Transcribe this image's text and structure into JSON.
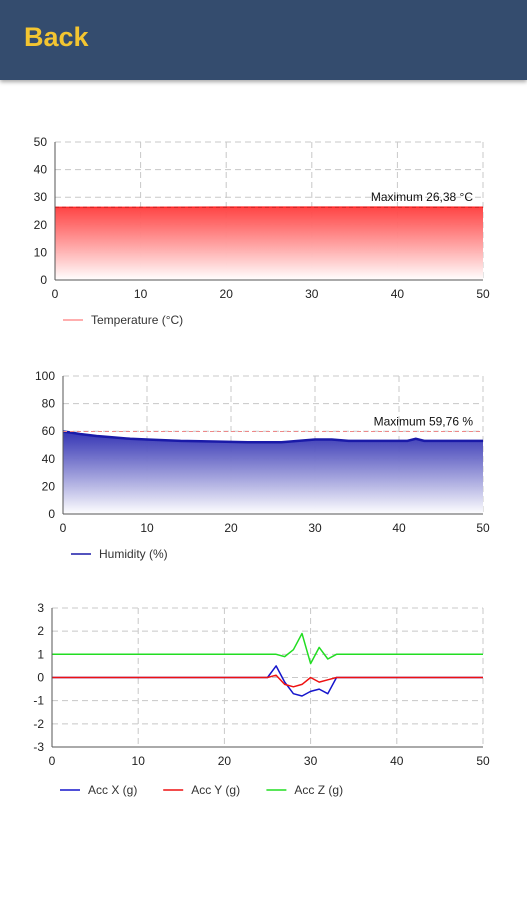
{
  "header": {
    "back_label": "Back"
  },
  "chart_data": [
    {
      "type": "area",
      "x": [
        0,
        10,
        20,
        30,
        40,
        50
      ],
      "xlim": [
        0,
        50
      ],
      "ylim": [
        0,
        50
      ],
      "xticks": [
        0,
        10,
        20,
        30,
        40,
        50
      ],
      "yticks": [
        0,
        10,
        20,
        30,
        40,
        50
      ],
      "series": [
        {
          "name": "Temperature (°C)",
          "values": [
            26.3,
            26.3,
            26.4,
            26.4,
            26.4,
            26.38
          ],
          "color": "#ff2a2a"
        }
      ],
      "max_label": "Maximum 26,38 °C",
      "max_value": 26.38,
      "grid": true,
      "legend_placement": "bottom-left"
    },
    {
      "type": "area",
      "x": [
        0,
        1,
        2,
        4,
        6,
        8,
        10,
        14,
        18,
        22,
        26,
        28,
        30,
        32,
        34,
        38,
        41,
        42,
        43,
        46,
        50
      ],
      "xlim": [
        0,
        50
      ],
      "ylim": [
        0,
        100
      ],
      "xticks": [
        0,
        10,
        20,
        30,
        40,
        50
      ],
      "yticks": [
        0,
        20,
        40,
        60,
        80,
        100
      ],
      "series": [
        {
          "name": "Humidity (%)",
          "values": [
            59.8,
            59,
            58,
            56.5,
            55.5,
            54.5,
            54,
            53,
            52.5,
            52,
            52,
            53,
            54,
            54,
            53,
            53,
            53,
            54.5,
            53,
            53,
            53
          ],
          "color": "#1a1aa8"
        }
      ],
      "max_label": "Maximum 59,76 %",
      "max_value": 59.76,
      "grid": true,
      "legend_placement": "bottom-left"
    },
    {
      "type": "line",
      "x": [
        0,
        10,
        20,
        25,
        26,
        27,
        28,
        29,
        30,
        31,
        32,
        33,
        34,
        40,
        50
      ],
      "xlim": [
        0,
        50
      ],
      "ylim": [
        -3,
        3
      ],
      "xticks": [
        0,
        10,
        20,
        30,
        40,
        50
      ],
      "yticks": [
        -3,
        -2,
        -1,
        0,
        1,
        2,
        3
      ],
      "series": [
        {
          "name": "Acc X (g)",
          "values": [
            0,
            0,
            0,
            0,
            0.5,
            -0.2,
            -0.7,
            -0.8,
            -0.6,
            -0.5,
            -0.7,
            0,
            0,
            0,
            0
          ],
          "color": "#1515cc"
        },
        {
          "name": "Acc Y (g)",
          "values": [
            0,
            0,
            0,
            0,
            0.1,
            -0.3,
            -0.4,
            -0.3,
            0,
            -0.2,
            -0.1,
            0,
            0,
            0,
            0
          ],
          "color": "#ee1111"
        },
        {
          "name": "Acc Z (g)",
          "values": [
            1,
            1,
            1,
            1,
            1,
            0.9,
            1.2,
            1.9,
            0.6,
            1.3,
            0.8,
            1,
            1,
            1,
            1
          ],
          "color": "#22dd22"
        }
      ],
      "grid": true,
      "legend_placement": "bottom-left"
    }
  ]
}
